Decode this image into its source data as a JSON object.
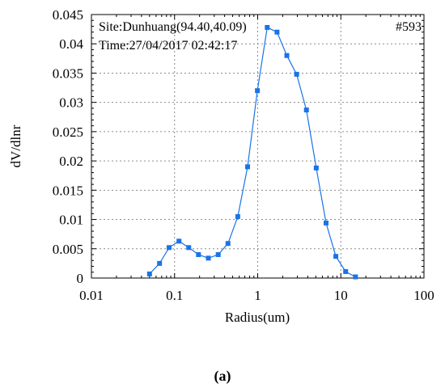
{
  "caption": "(a)",
  "chart_data": {
    "type": "line",
    "xscale": "log",
    "xlim": [
      0.01,
      100
    ],
    "ylim": [
      0,
      0.045
    ],
    "xlabel": "Radius(um)",
    "ylabel": "dV/dlnr",
    "x_ticks": [
      0.01,
      0.1,
      1,
      10,
      100
    ],
    "x_tick_labels": [
      "0.01",
      "0.1",
      "1",
      "10",
      "100"
    ],
    "y_ticks": [
      0,
      0.005,
      0.01,
      0.015,
      0.02,
      0.025,
      0.03,
      0.035,
      0.04,
      0.045
    ],
    "y_tick_labels": [
      "0",
      "0.005",
      "0.01",
      "0.015",
      "0.02",
      "0.025",
      "0.03",
      "0.035",
      "0.04",
      "0.045"
    ],
    "grid": true,
    "annotations": {
      "site": "Site:Dunhuang(94.40,40.09)",
      "time": "Time:27/04/2017 02:42:17",
      "id": "#593"
    },
    "series": [
      {
        "color": "#1a73e8",
        "marker": "square",
        "x": [
          0.05,
          0.066,
          0.086,
          0.113,
          0.148,
          0.194,
          0.255,
          0.335,
          0.439,
          0.576,
          0.756,
          0.992,
          1.302,
          1.708,
          2.241,
          2.94,
          3.857,
          5.061,
          6.641,
          8.713,
          11.432,
          15.0
        ],
        "y": [
          0.0007,
          0.0025,
          0.0052,
          0.0063,
          0.0052,
          0.004,
          0.0034,
          0.004,
          0.0059,
          0.0105,
          0.019,
          0.032,
          0.0428,
          0.042,
          0.038,
          0.0348,
          0.0287,
          0.0188,
          0.0094,
          0.0037,
          0.0011,
          0.0002
        ]
      }
    ]
  }
}
